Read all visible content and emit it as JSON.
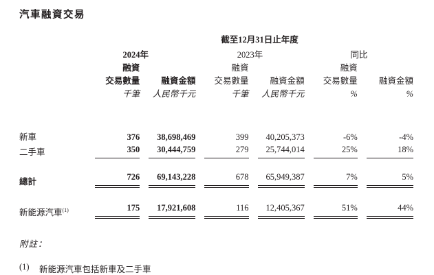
{
  "title": "汽車融資交易",
  "table": {
    "period_header": "截至12月31日止年度",
    "year_2024": "2024年",
    "year_2023": "2023年",
    "yoy_label": "同比",
    "columns": [
      {
        "line1": "融資",
        "line2": "交易數量",
        "unit": "千筆"
      },
      {
        "line1": "",
        "line2": "融資金額",
        "unit": "人民幣千元"
      },
      {
        "line1": "融資",
        "line2": "交易數量",
        "unit": "千筆"
      },
      {
        "line1": "",
        "line2": "融資金額",
        "unit": "人民幣千元"
      },
      {
        "line1": "融資",
        "line2": "交易數量",
        "unit": "%"
      },
      {
        "line1": "",
        "line2": "融資金額",
        "unit": "%"
      }
    ],
    "rows": [
      {
        "label": "新車",
        "label_sup": "",
        "values": [
          "376",
          "38,698,469",
          "399",
          "40,205,373",
          "-6%",
          "-4%"
        ]
      },
      {
        "label": "二手車",
        "label_sup": "",
        "values": [
          "350",
          "30,444,759",
          "279",
          "25,744,014",
          "25%",
          "18%"
        ]
      },
      {
        "label": "總計",
        "label_sup": "",
        "values": [
          "726",
          "69,143,228",
          "678",
          "65,949,387",
          "7%",
          "5%"
        ]
      },
      {
        "label": "新能源汽車",
        "label_sup": "(1)",
        "values": [
          "175",
          "17,921,608",
          "116",
          "12,405,367",
          "51%",
          "44%"
        ]
      }
    ]
  },
  "notes": {
    "heading": "附註：",
    "items": [
      {
        "marker": "(1)",
        "text": "新能源汽車包括新車及二手車"
      }
    ]
  },
  "colors": {
    "text": "#231f20",
    "rule": "#231f20",
    "background": "#ffffff"
  }
}
